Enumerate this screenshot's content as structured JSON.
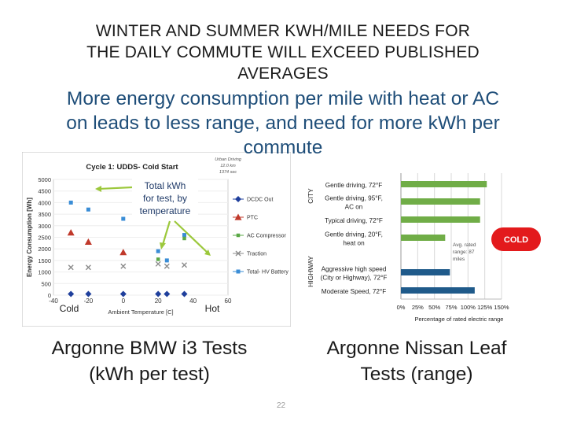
{
  "title_lines": [
    "WINTER AND SUMMER KWH/MILE NEEDS FOR",
    "THE DAILY COMMUTE WILL EXCEED PUBLISHED",
    "AVERAGES"
  ],
  "subtitle_lines": [
    "More energy consumption per mile with heat or AC",
    "on leads to less range, and need for more kWh per",
    "commute"
  ],
  "colors": {
    "green": "#70ad47",
    "navy": "#1f5a8a",
    "red_badge": "#e31a1c",
    "bmw_total": "#3a8dd6",
    "bmw_dcdc": "#1f3f9c",
    "bmw_ptc": "#c0392b",
    "bmw_ac": "#5aa846",
    "bmw_traction": "#8a8a8a"
  },
  "chart_data": [
    {
      "type": "scatter",
      "title": "Cycle 1: UDDS- Cold Start",
      "annotation_lines": [
        "Urban Driving",
        "12.0 km",
        "1374 sec"
      ],
      "callout_lines": [
        "Total kWh",
        "for test, by",
        "temperature"
      ],
      "xlabel": "Ambient Temperature [C]",
      "ylabel": "Energy Consumption [Wh]",
      "xlim": [
        -40,
        60
      ],
      "ylim": [
        0,
        5000
      ],
      "x_ticks": [
        "-40",
        "-20",
        "0",
        "20",
        "40",
        "60"
      ],
      "y_ticks": [
        "0",
        "500",
        "1000",
        "1500",
        "2000",
        "2500",
        "3000",
        "3500",
        "4000",
        "4500",
        "5000"
      ],
      "cold_label": "Cold",
      "hot_label": "Hot",
      "legend": [
        "DCDC Out",
        "PTC",
        "AC Compressor",
        "Traction",
        "Total- HV Battery"
      ],
      "series": [
        {
          "name": "Total- HV Battery",
          "points": [
            [
              -30,
              4000
            ],
            [
              -20,
              3700
            ],
            [
              0,
              3300
            ],
            [
              20,
              1900
            ],
            [
              25,
              1500
            ],
            [
              35,
              2600
            ]
          ]
        },
        {
          "name": "DCDC Out",
          "points": [
            [
              -30,
              50
            ],
            [
              -20,
              50
            ],
            [
              0,
              50
            ],
            [
              20,
              50
            ],
            [
              25,
              50
            ],
            [
              35,
              50
            ]
          ]
        },
        {
          "name": "PTC",
          "points": [
            [
              -30,
              2700
            ],
            [
              -20,
              2300
            ],
            [
              0,
              1850
            ]
          ]
        },
        {
          "name": "AC Compressor",
          "points": [
            [
              20,
              1550
            ],
            [
              35,
              2450
            ]
          ]
        },
        {
          "name": "Traction",
          "points": [
            [
              -30,
              1200
            ],
            [
              -20,
              1200
            ],
            [
              0,
              1250
            ],
            [
              20,
              1350
            ],
            [
              25,
              1250
            ],
            [
              35,
              1300
            ]
          ]
        }
      ],
      "caption_lines": [
        "Argonne BMW i3 Tests",
        "(kWh per test)"
      ]
    },
    {
      "type": "bar",
      "orientation": "horizontal",
      "categories": [
        "Gentle driving, 72°F",
        "Gentle driving, 95°F, AC on",
        "Typical driving, 72°F",
        "Gentle driving, 20°F, heat on",
        "Aggressive high speed (City or Highway), 72°F",
        "Moderate Speed, 72°F"
      ],
      "category_lines": [
        [
          "Gentle driving, 72°F"
        ],
        [
          "Gentle driving, 95°F,",
          "AC on"
        ],
        [
          "Typical driving, 72°F"
        ],
        [
          "Gentle driving, 20°F,",
          "heat on"
        ],
        [
          "Aggressive high speed",
          "(City or Highway), 72°F"
        ],
        [
          "Moderate Speed, 72°F"
        ]
      ],
      "values": [
        128,
        118,
        118,
        66,
        73,
        110
      ],
      "bar_colors": [
        "#70ad47",
        "#70ad47",
        "#70ad47",
        "#70ad47",
        "#1f5a8a",
        "#1f5a8a"
      ],
      "group_labels": [
        "CITY",
        "HIGHWAY"
      ],
      "x_ticks": [
        "0%",
        "25%",
        "50%",
        "75%",
        "100%",
        "125%",
        "150%"
      ],
      "xlim": [
        0,
        150
      ],
      "xlabel": "Percentage of rated electric range",
      "annotation_lines": [
        "Avg. rated",
        "range: 87",
        "miles"
      ],
      "badge": "COLD",
      "caption_lines": [
        "Argonne Nissan Leaf",
        "Tests (range)"
      ]
    }
  ],
  "page_number": "22"
}
